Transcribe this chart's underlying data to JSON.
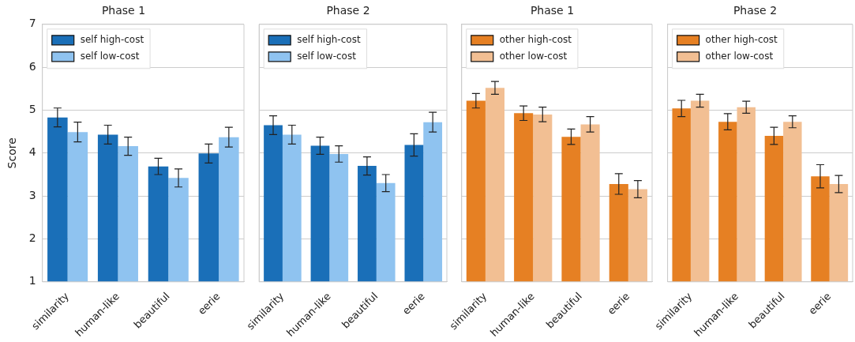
{
  "chart_data": [
    {
      "type": "bar",
      "title": "Phase 1",
      "ylabel": "Score",
      "categories": [
        "similarity",
        "human-like",
        "beautiful",
        "eerie"
      ],
      "series": [
        {
          "name": "self high-cost",
          "color": "#1a6fb8",
          "values": [
            4.83,
            4.43,
            3.69,
            3.99
          ],
          "errors": [
            0.22,
            0.22,
            0.19,
            0.22
          ]
        },
        {
          "name": "self low-cost",
          "color": "#8fc3f0",
          "values": [
            4.49,
            4.16,
            3.42,
            4.37
          ],
          "errors": [
            0.23,
            0.21,
            0.21,
            0.23
          ]
        }
      ],
      "ylim": [
        1,
        7
      ],
      "yticks": [
        1,
        2,
        3,
        4,
        5,
        6,
        7
      ],
      "grid": "y",
      "legend": "top left"
    },
    {
      "type": "bar",
      "title": "Phase 2",
      "categories": [
        "similarity",
        "human-like",
        "beautiful",
        "eerie"
      ],
      "series": [
        {
          "name": "self high-cost",
          "color": "#1a6fb8",
          "values": [
            4.65,
            4.17,
            3.7,
            4.19
          ],
          "errors": [
            0.22,
            0.2,
            0.21,
            0.26
          ]
        },
        {
          "name": "self low-cost",
          "color": "#8fc3f0",
          "values": [
            4.43,
            3.98,
            3.3,
            4.72
          ],
          "errors": [
            0.22,
            0.19,
            0.2,
            0.23
          ]
        }
      ],
      "ylim": [
        1,
        7
      ],
      "yticks": [
        1,
        2,
        3,
        4,
        5,
        6,
        7
      ],
      "grid": "y",
      "legend": "top left",
      "tick_labels": "x"
    },
    {
      "type": "bar",
      "title": "Phase 1",
      "categories": [
        "similarity",
        "human-like",
        "beautiful",
        "eerie"
      ],
      "series": [
        {
          "name": "other high-cost",
          "color": "#e68023",
          "values": [
            5.22,
            4.93,
            4.38,
            3.28
          ],
          "errors": [
            0.17,
            0.17,
            0.18,
            0.24
          ]
        },
        {
          "name": "other low-cost",
          "color": "#f2bf93",
          "values": [
            5.52,
            4.9,
            4.67,
            3.16
          ],
          "errors": [
            0.15,
            0.17,
            0.18,
            0.2
          ]
        }
      ],
      "ylim": [
        1,
        7
      ],
      "yticks": [
        1,
        2,
        3,
        4,
        5,
        6,
        7
      ],
      "grid": "y",
      "legend": "top left",
      "tick_labels": "x"
    },
    {
      "type": "bar",
      "title": "Phase 2",
      "categories": [
        "similarity",
        "human-like",
        "beautiful",
        "eerie"
      ],
      "series": [
        {
          "name": "other high-cost",
          "color": "#e68023",
          "values": [
            5.04,
            4.73,
            4.4,
            3.46
          ],
          "errors": [
            0.19,
            0.19,
            0.2,
            0.27
          ]
        },
        {
          "name": "other low-cost",
          "color": "#f2bf93",
          "values": [
            5.22,
            5.07,
            4.73,
            3.28
          ],
          "errors": [
            0.15,
            0.14,
            0.14,
            0.2
          ]
        }
      ],
      "ylim": [
        1,
        7
      ],
      "yticks": [
        1,
        2,
        3,
        4,
        5,
        6,
        7
      ],
      "grid": "y",
      "legend": "top left",
      "tick_labels": "x"
    }
  ]
}
